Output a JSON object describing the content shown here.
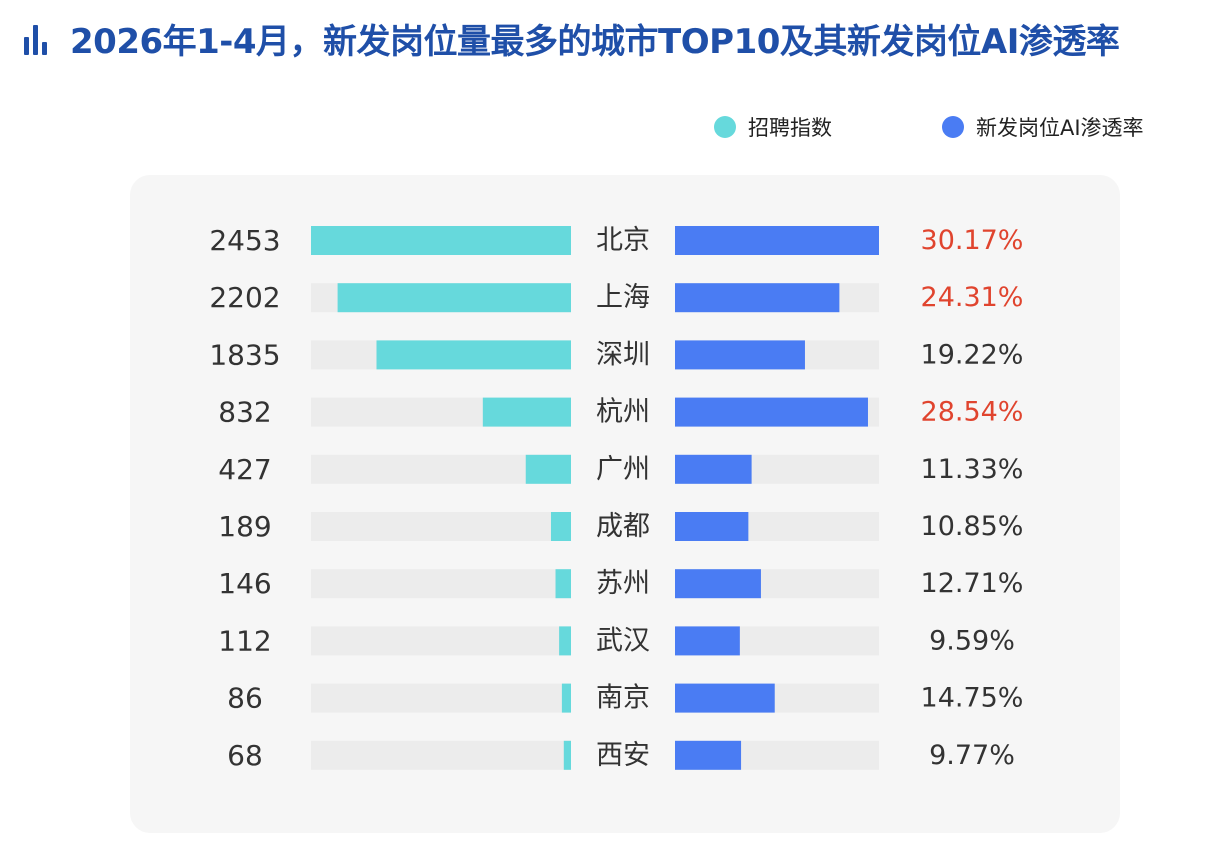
{
  "title": "2026年1-4月，新发岗位量最多的城市TOP10及其新发岗位AI渗透率",
  "title_icon": "bar-chart-icon",
  "colors": {
    "title": "#1f4fa8",
    "index_bar": "#66d9dc",
    "ai_bar": "#4a7cf3",
    "track": "#ececec",
    "highlight_text": "#e0442e",
    "normal_text": "#333333"
  },
  "legend": [
    {
      "label": "招聘指数",
      "color": "#66d9dc"
    },
    {
      "label": "新发岗位AI渗透率",
      "color": "#4a7cf3"
    }
  ],
  "chart_data": {
    "type": "bar",
    "categories": [
      "北京",
      "上海",
      "深圳",
      "杭州",
      "广州",
      "成都",
      "苏州",
      "武汉",
      "南京",
      "西安"
    ],
    "series": [
      {
        "name": "招聘指数",
        "values": [
          2453,
          2202,
          1835,
          832,
          427,
          189,
          146,
          112,
          86,
          68
        ],
        "labels": [
          "2453",
          "2202",
          "1835",
          "832",
          "427",
          "189",
          "146",
          "112",
          "86",
          "68"
        ]
      },
      {
        "name": "新发岗位AI渗透率",
        "values": [
          30.17,
          24.31,
          19.22,
          28.54,
          11.33,
          10.85,
          12.71,
          9.59,
          14.75,
          9.77
        ],
        "labels": [
          "30.17%",
          "24.31%",
          "19.22%",
          "28.54%",
          "11.33%",
          "10.85%",
          "12.71%",
          "9.59%",
          "14.75%",
          "9.77%"
        ],
        "highlighted": [
          true,
          true,
          false,
          true,
          false,
          false,
          false,
          false,
          false,
          false
        ]
      }
    ],
    "legend": "top-right",
    "grid": false
  }
}
